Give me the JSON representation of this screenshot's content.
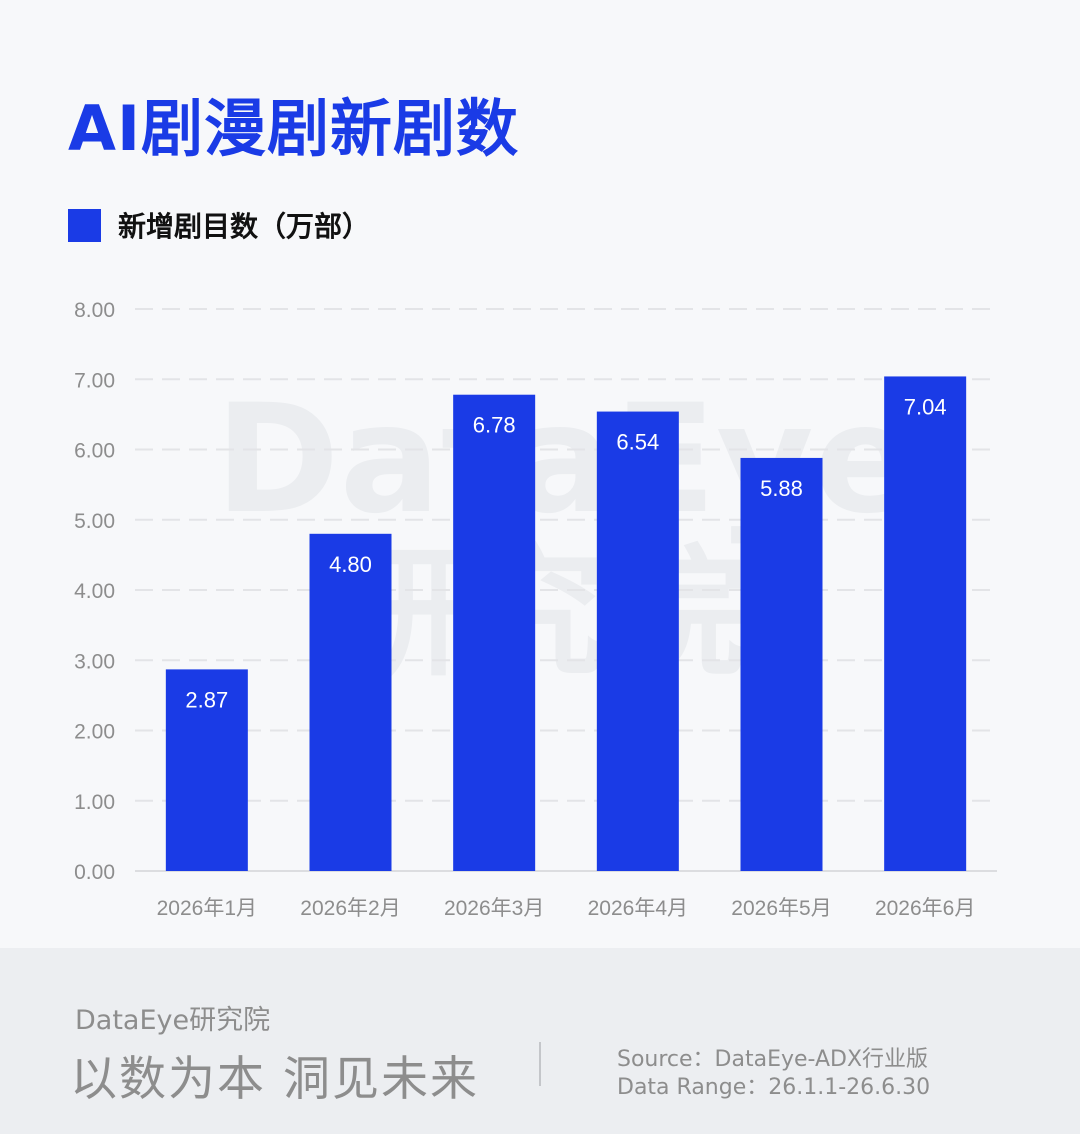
{
  "title": "AI剧漫剧新剧数",
  "legend": {
    "label": "新增剧目数（万部）",
    "color": "#1a3be6"
  },
  "watermark": {
    "line1": "DataEye",
    "line2": "研究院"
  },
  "chart_data": {
    "type": "bar",
    "categories": [
      "2026年1月",
      "2026年2月",
      "2026年3月",
      "2026年4月",
      "2026年5月",
      "2026年6月"
    ],
    "series": [
      {
        "name": "新增剧目数（万部）",
        "values": [
          2.87,
          4.8,
          6.78,
          6.54,
          5.88,
          7.04
        ]
      }
    ],
    "data_labels": [
      "2.87",
      "4.80",
      "6.78",
      "6.54",
      "5.88",
      "7.04"
    ],
    "ylim": [
      0,
      8
    ],
    "yticks": [
      "0.00",
      "1.00",
      "2.00",
      "3.00",
      "4.00",
      "5.00",
      "6.00",
      "7.00",
      "8.00"
    ],
    "grid": true,
    "grid_style": "dashed",
    "legend_position": "top-left",
    "bar_color": "#1a3be6"
  },
  "footer": {
    "org": "DataEye研究院",
    "slogan": "以数为本 洞见未来",
    "source": "Source：DataEye-ADX行业版",
    "range": "Data Range：26.1.1-26.6.30"
  }
}
